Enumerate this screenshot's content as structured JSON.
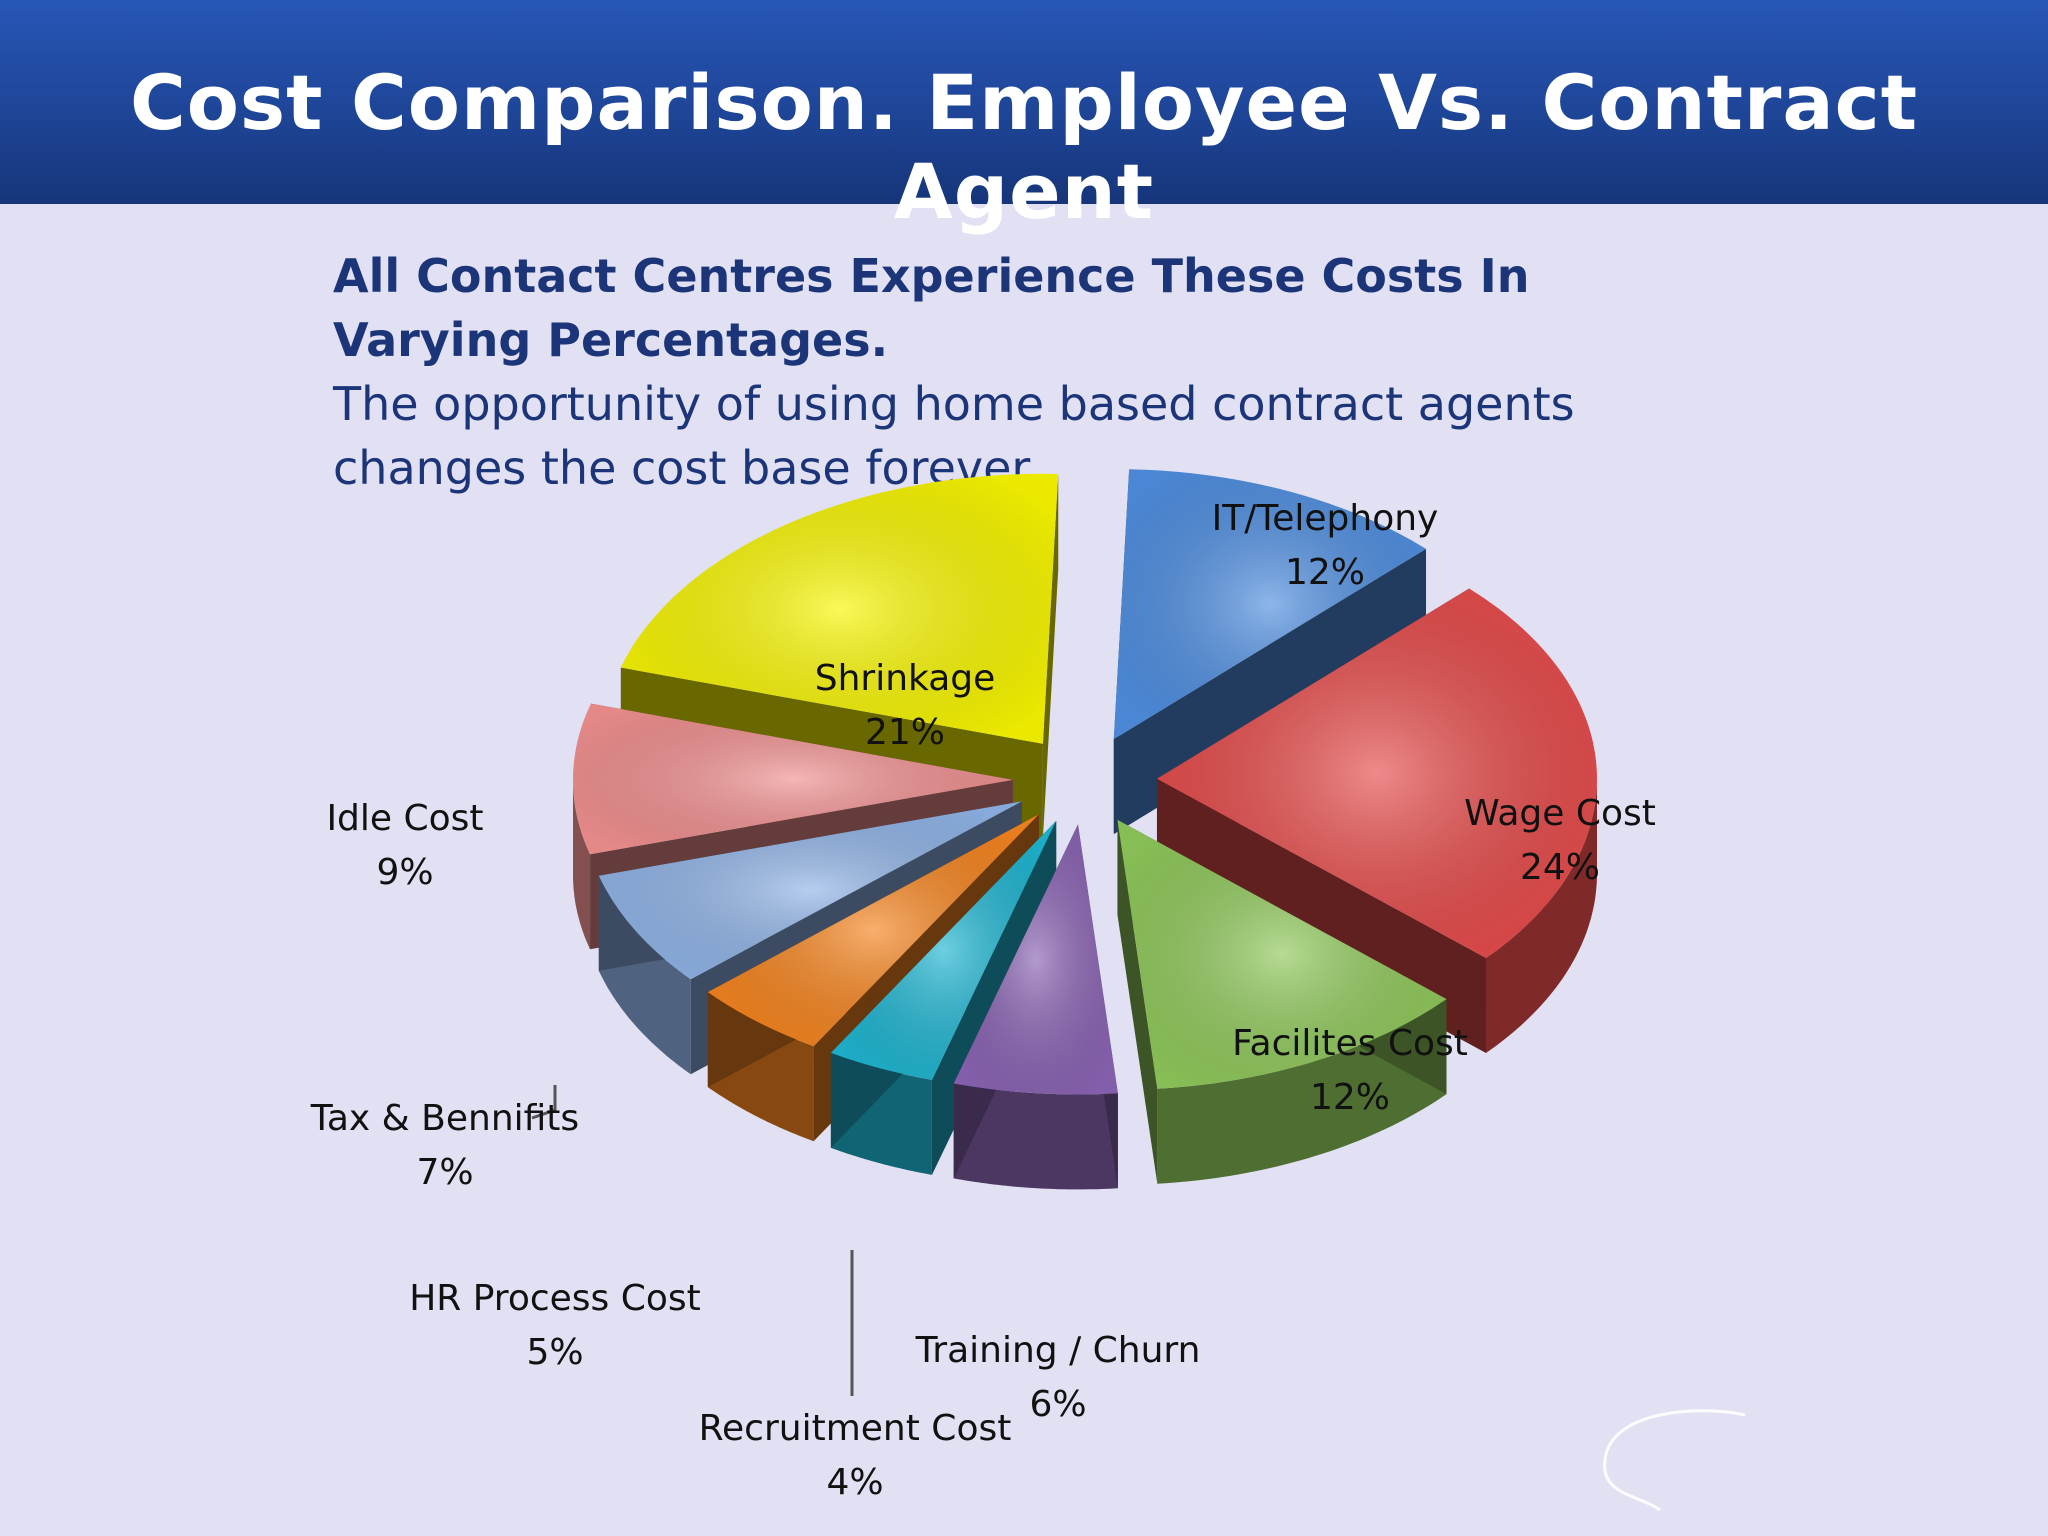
{
  "header": {
    "title": "Cost Comparison. Employee Vs. Contract Agent"
  },
  "content": {
    "subtitle_line1": "All Contact Centres Experience These Costs In",
    "subtitle_line2": "Varying Percentages.",
    "body_line1": "The opportunity of using home based contract agents",
    "body_line2": "changes the cost base forever."
  },
  "chart_data": {
    "type": "pie",
    "style": "3d-exploded",
    "title": "",
    "slices": [
      {
        "label": "IT/Telephony",
        "value": 12,
        "value_label": "12%",
        "color": "#4f8ee0"
      },
      {
        "label": "Wage Cost",
        "value": 24,
        "value_label": "24%",
        "color": "#e64b4b"
      },
      {
        "label": "Facilites Cost",
        "value": 12,
        "value_label": "12%",
        "color": "#8fc85a"
      },
      {
        "label": "Training / Churn",
        "value": 6,
        "value_label": "6%",
        "color": "#8a63b3"
      },
      {
        "label": "Recruitment Cost",
        "value": 4,
        "value_label": "4%",
        "color": "#1fb5d1"
      },
      {
        "label": "HR Process Cost",
        "value": 5,
        "value_label": "5%",
        "color": "#f5841f"
      },
      {
        "label": "Tax & Bennifits",
        "value": 7,
        "value_label": "7%",
        "color": "#8fb3e6"
      },
      {
        "label": "Idle Cost",
        "value": 9,
        "value_label": "9%",
        "color": "#f08f8f"
      },
      {
        "label": "Shrinkage",
        "value": 21,
        "value_label": "21%",
        "color": "#f7f500"
      }
    ]
  }
}
